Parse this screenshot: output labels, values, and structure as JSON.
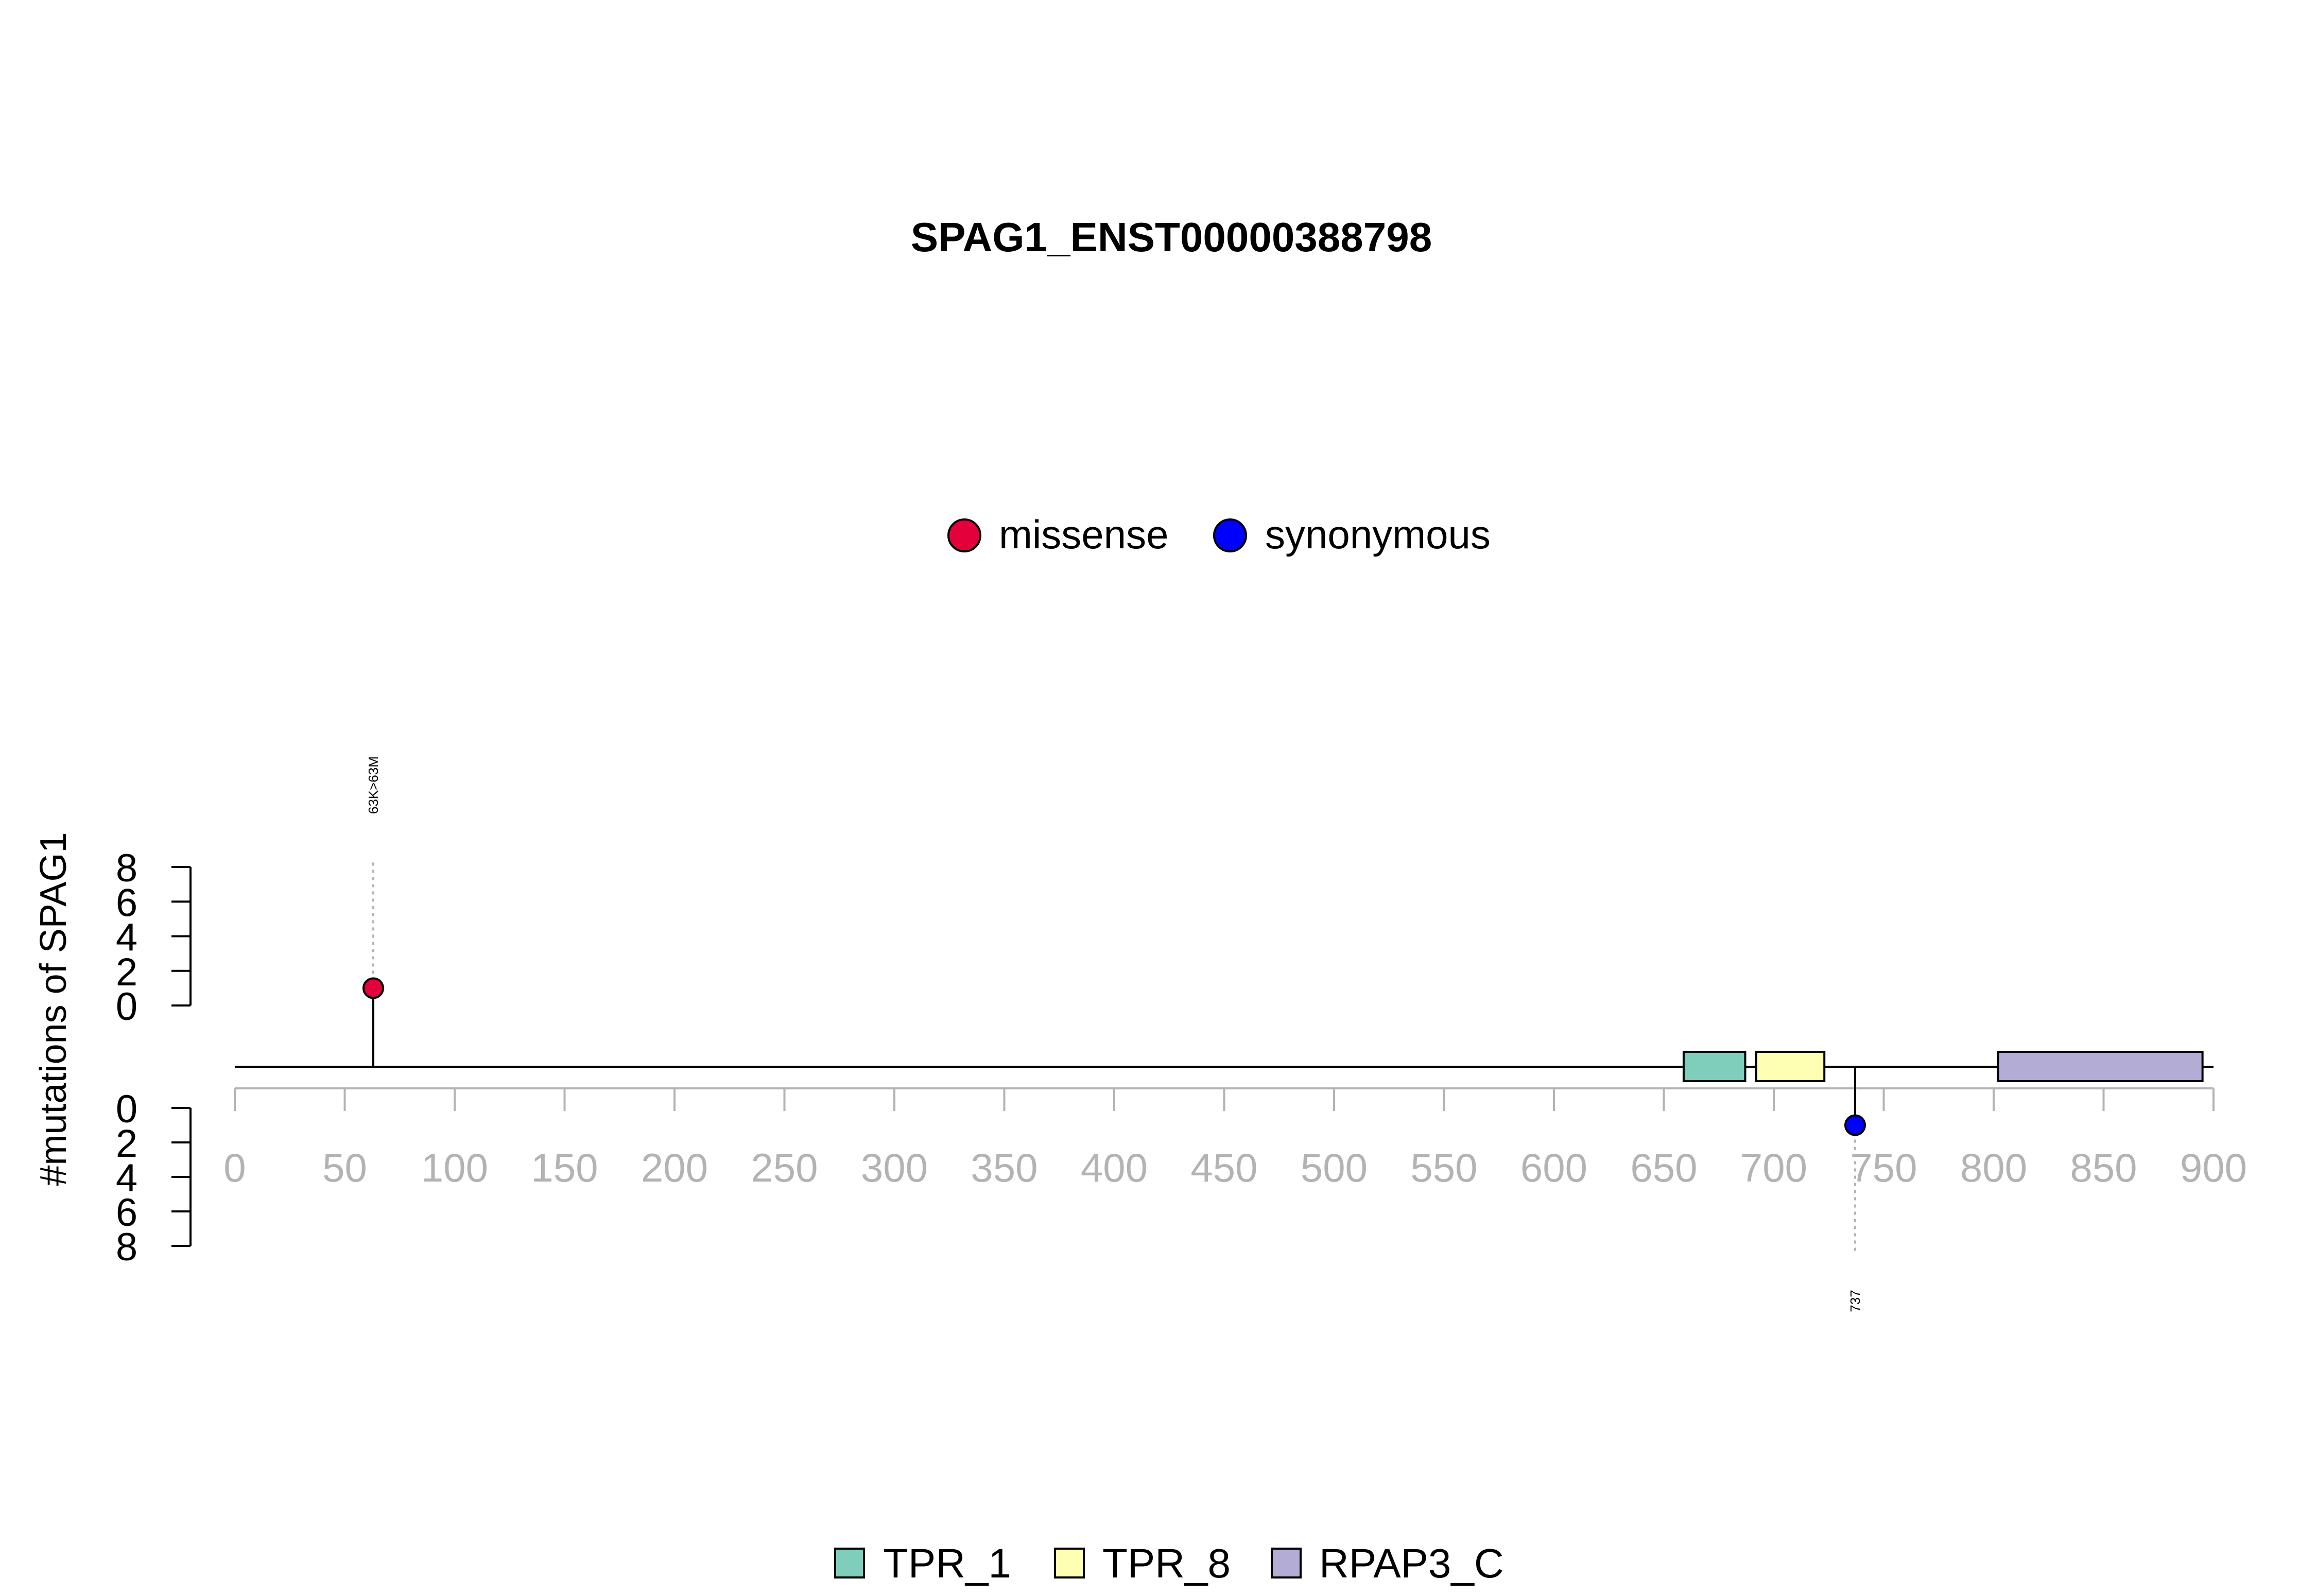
{
  "chart_data": {
    "type": "lollipop",
    "title": "SPAG1_ENST00000388798",
    "ylabel": "#mutations of SPAG1",
    "xlim": [
      0,
      900
    ],
    "x_ticks": [
      0,
      50,
      100,
      150,
      200,
      250,
      300,
      350,
      400,
      450,
      500,
      550,
      600,
      650,
      700,
      750,
      800,
      850,
      900
    ],
    "y_ticks": [
      0,
      2,
      4,
      6,
      8
    ],
    "ylim": [
      0,
      8
    ],
    "legend_mutation": [
      {
        "label": "missense",
        "color": "#E3003B"
      },
      {
        "label": "synonymous",
        "color": "#0000FF"
      }
    ],
    "mutations": [
      {
        "position": 63,
        "count": 1,
        "type": "missense",
        "label": "63K>63M",
        "side": "top",
        "color": "#E3003B"
      },
      {
        "position": 737,
        "count": 1,
        "type": "synonymous",
        "label": "737",
        "side": "bottom",
        "color": "#0000FF"
      }
    ],
    "domains": [
      {
        "name": "TPR_1",
        "start": 659,
        "end": 687,
        "color": "#7FCDBB"
      },
      {
        "name": "TPR_8",
        "start": 692,
        "end": 723,
        "color": "#FFFFB3"
      },
      {
        "name": "RPAP3_C",
        "start": 802,
        "end": 895,
        "color": "#B3ADD6"
      }
    ],
    "colors": {
      "axis": "#000000",
      "x_axis": "#B3B3B3",
      "dotted": "#B3B3B3"
    }
  }
}
